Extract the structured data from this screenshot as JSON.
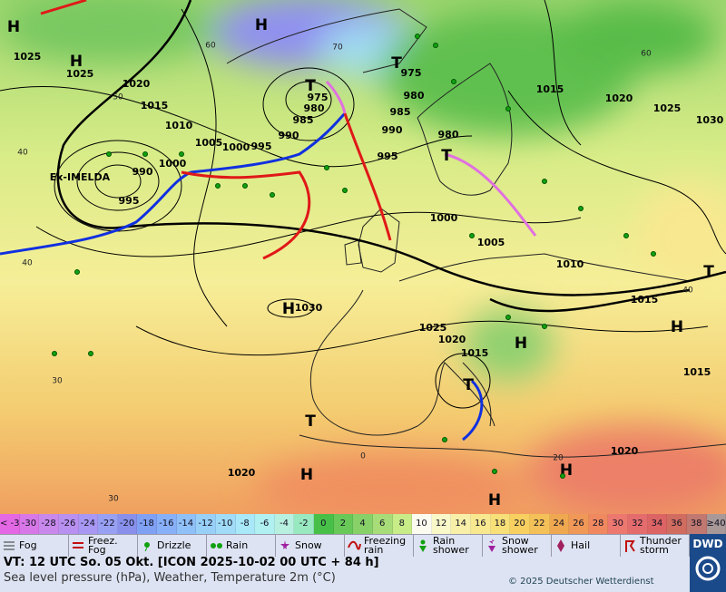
{
  "map": {
    "labels": [
      "H",
      1025,
      "H",
      1025,
      1020,
      1015,
      1010,
      1005,
      1000,
      995,
      990,
      "H",
      "T",
      975,
      980,
      985,
      "T",
      975,
      980,
      985,
      990,
      995,
      980,
      "T",
      1000,
      1005,
      1010,
      1015,
      1020,
      1025,
      1030,
      "Ex-IMELDA",
      990,
      1000,
      995,
      "H",
      1030,
      1025,
      1020,
      1015,
      "H",
      "T",
      1015,
      "H",
      "T",
      1015,
      "T",
      1020,
      "H",
      1020,
      "H",
      "H"
    ],
    "temperature_labels": [
      40,
      50,
      60,
      70,
      40,
      60,
      40,
      30,
      20,
      30,
      0
    ]
  },
  "scale": {
    "cells": [
      {
        "label": "< -30",
        "color": "#e468e4"
      },
      {
        "label": -30,
        "color": "#d878e8"
      },
      {
        "label": -28,
        "color": "#c888ec"
      },
      {
        "label": -26,
        "color": "#b890f0"
      },
      {
        "label": -24,
        "color": "#a898f4"
      },
      {
        "label": -22,
        "color": "#98a0f4"
      },
      {
        "label": -20,
        "color": "#8890ec"
      },
      {
        "label": -18,
        "color": "#80a0f4"
      },
      {
        "label": -16,
        "color": "#88b0f8"
      },
      {
        "label": -14,
        "color": "#90c0f8"
      },
      {
        "label": -12,
        "color": "#98d0f8"
      },
      {
        "label": -10,
        "color": "#a0dcf8"
      },
      {
        "label": -8,
        "color": "#a8e8f8"
      },
      {
        "label": -6,
        "color": "#b0f0f0"
      },
      {
        "label": -4,
        "color": "#b8f0e0"
      },
      {
        "label": -2,
        "color": "#98e8c0"
      },
      {
        "label": 0,
        "color": "#48c048"
      },
      {
        "label": 2,
        "color": "#68c858"
      },
      {
        "label": 4,
        "color": "#88d068"
      },
      {
        "label": 6,
        "color": "#a8dc78"
      },
      {
        "label": 8,
        "color": "#c8ec88"
      },
      {
        "label": 10,
        "color": "#fbfbf0"
      },
      {
        "label": 12,
        "color": "#f8f8c8"
      },
      {
        "label": 14,
        "color": "#f8f0a8"
      },
      {
        "label": 16,
        "color": "#f8e890"
      },
      {
        "label": 18,
        "color": "#f8e078"
      },
      {
        "label": 20,
        "color": "#f8d060"
      },
      {
        "label": 22,
        "color": "#f4c058"
      },
      {
        "label": 24,
        "color": "#f0a850"
      },
      {
        "label": 26,
        "color": "#f09858"
      },
      {
        "label": 28,
        "color": "#f08860"
      },
      {
        "label": 30,
        "color": "#ec7870"
      },
      {
        "label": 32,
        "color": "#e46c6c"
      },
      {
        "label": 34,
        "color": "#dc6464"
      },
      {
        "label": 36,
        "color": "#d06c60"
      },
      {
        "label": 38,
        "color": "#c07870"
      },
      {
        "label": "≥40 °C",
        "color": "#a89898"
      }
    ]
  },
  "legend": {
    "items": [
      "Fog",
      "Freez. Fog",
      "Drizzle",
      "Rain",
      "Snow",
      "Freezing rain",
      "Rain shower",
      "Snow shower",
      "Hail",
      "Thunder storm"
    ]
  },
  "footer": {
    "line1": "VT: 12 UTC So.  05 Okt. [ICON 2025-10-02  00 UTC + 84 h]",
    "line2": "Sea level pressure (hPa), Weather, Temperature 2m (°C)",
    "copyright": "© 2025 Deutscher Wetterdienst",
    "logo": "DWD"
  }
}
